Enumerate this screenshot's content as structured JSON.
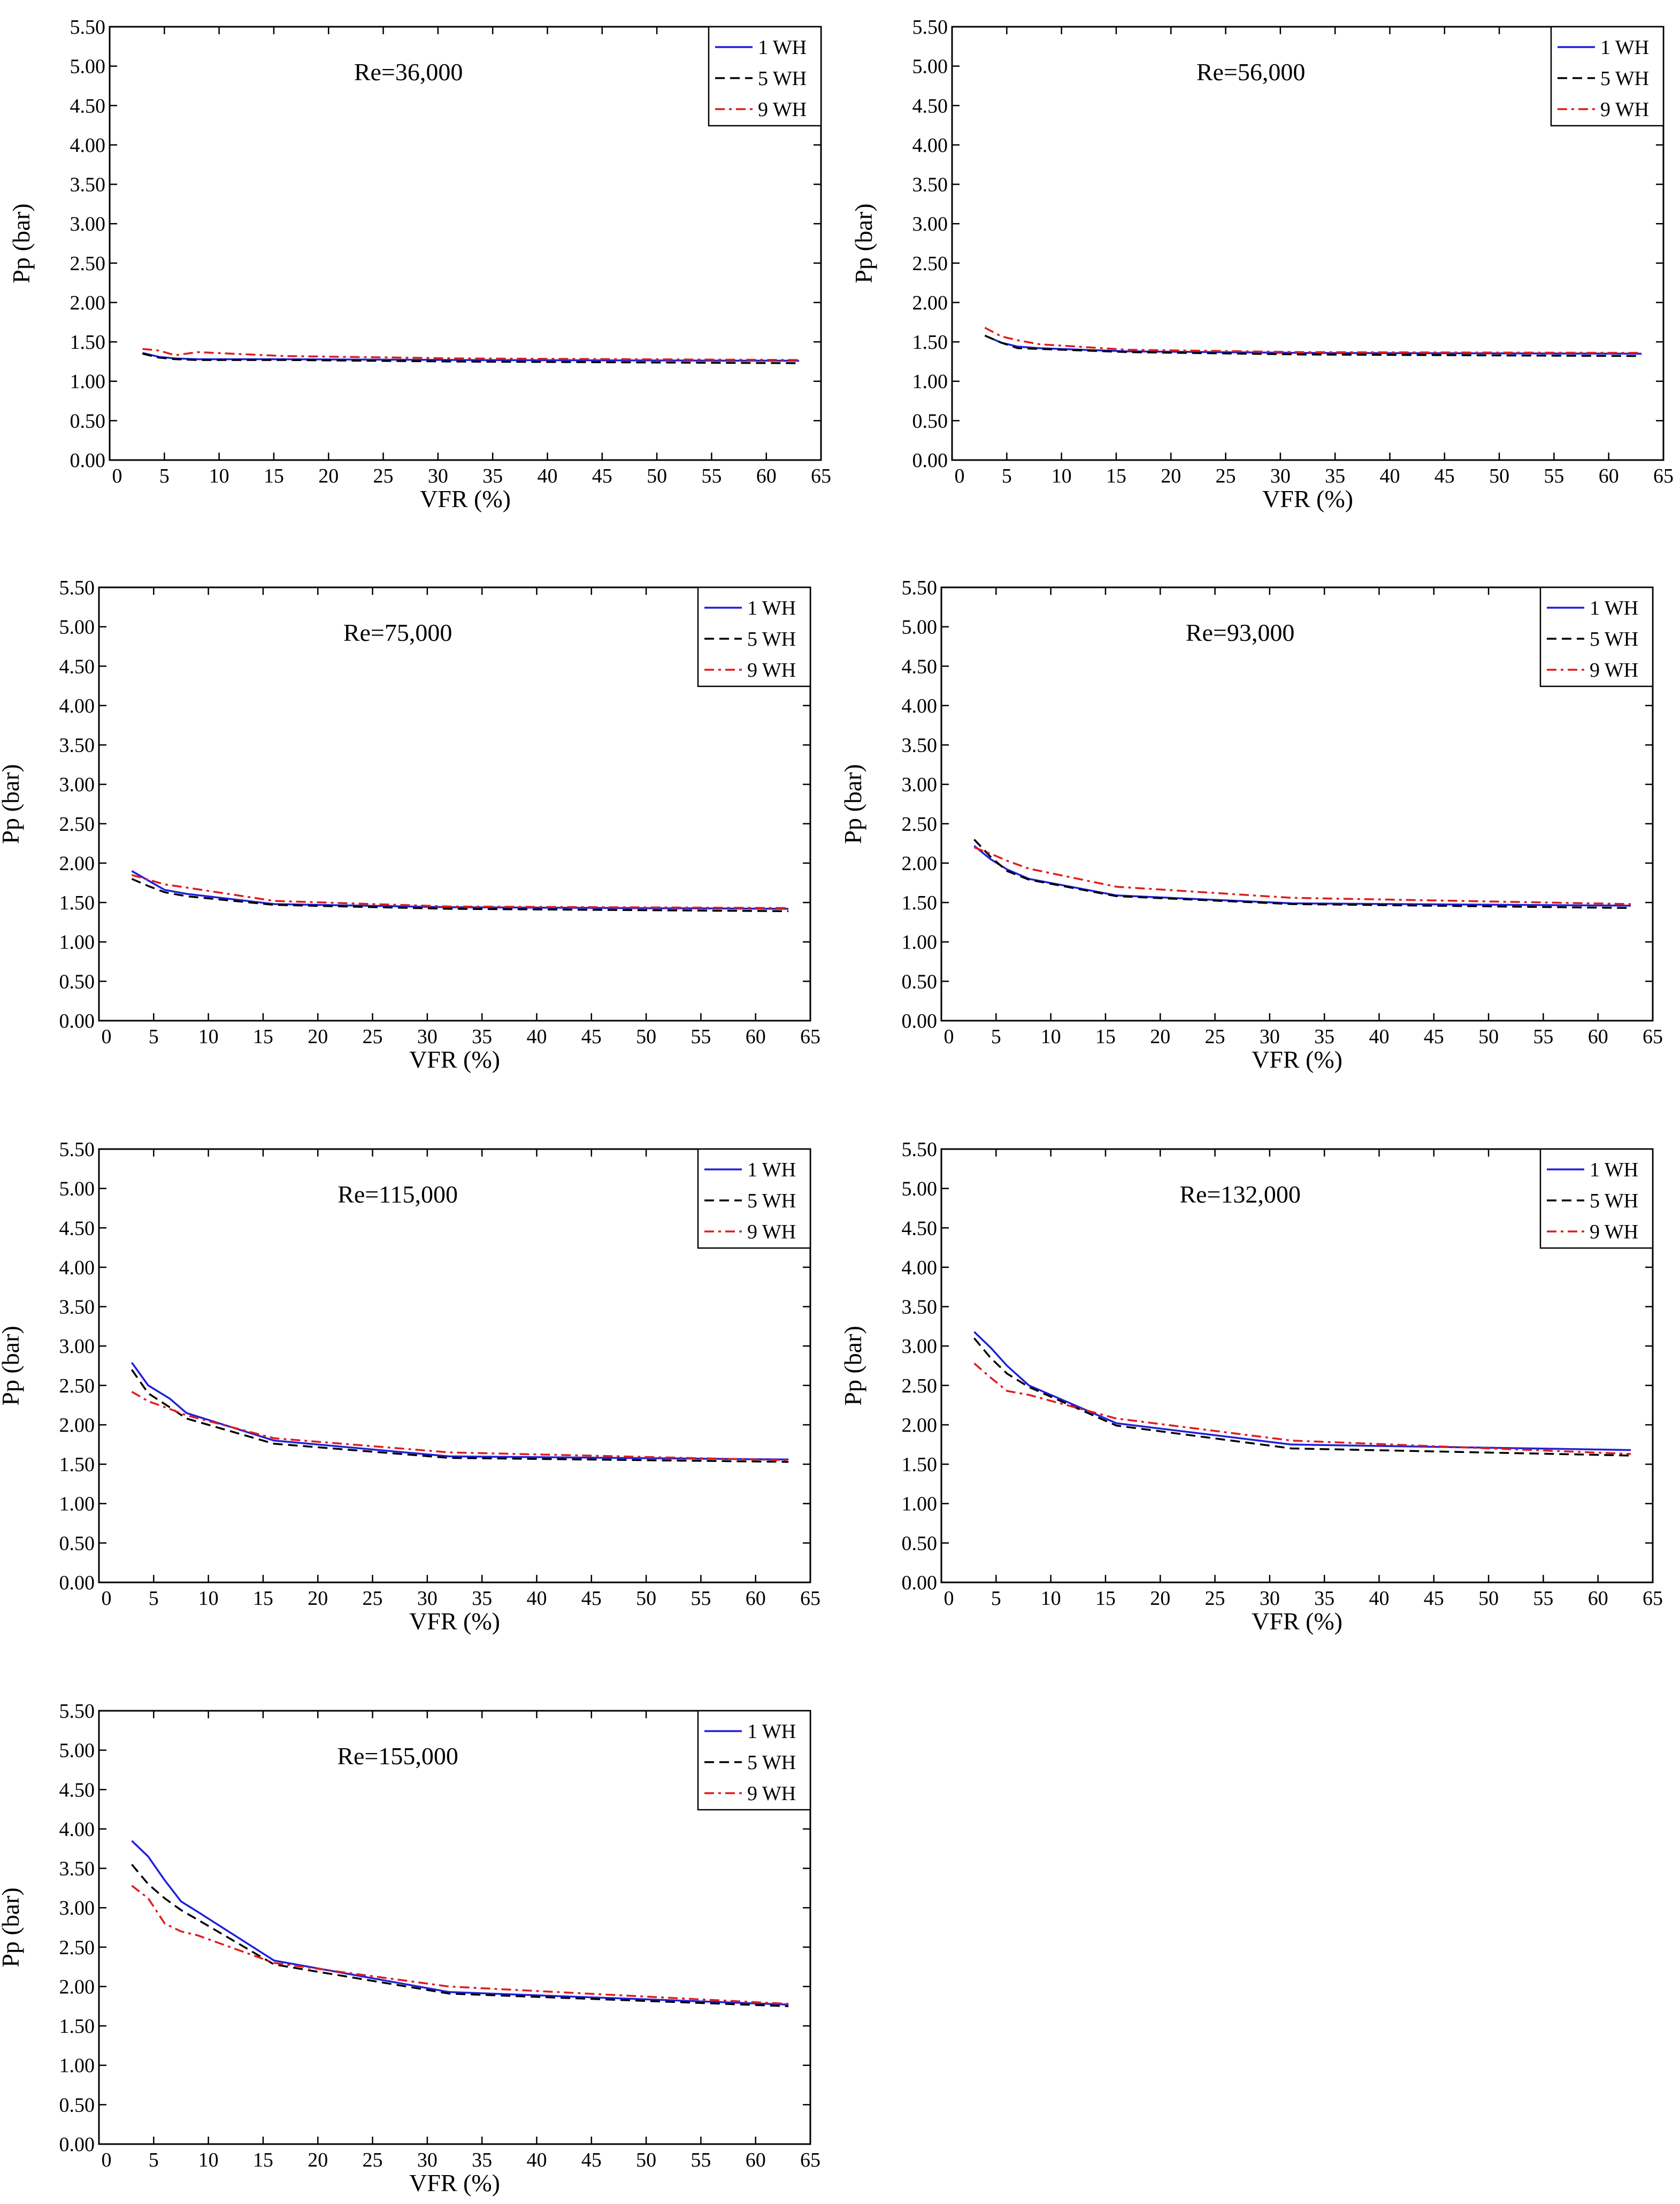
{
  "figure": {
    "colors": {
      "1 WH": "#1f1fdc",
      "5 WH": "#000000",
      "9 WH": "#e01b1b"
    }
  },
  "chart_data": [
    {
      "type": "line",
      "annotation": "Re=36,000",
      "xlabel": "VFR (%)",
      "ylabel": "Pp (bar)",
      "xlim": [
        0,
        65
      ],
      "ylim": [
        0,
        5.5
      ],
      "xticks": [
        0,
        5,
        10,
        15,
        20,
        25,
        30,
        35,
        40,
        45,
        50,
        55,
        60,
        65
      ],
      "yticks": [
        0,
        0.5,
        1,
        1.5,
        2,
        2.5,
        3,
        3.5,
        4,
        4.5,
        5,
        5.5
      ],
      "ytick_labels": [
        "0.00",
        "0.50",
        "1.00",
        "1.50",
        "2.00",
        "2.50",
        "3.00",
        "3.50",
        "4.00",
        "4.50",
        "5.00",
        "5.50"
      ],
      "grid": false,
      "legend": "top-right",
      "series": [
        {
          "name": "1 WH",
          "style": "solid",
          "x": [
            3,
            4.5,
            6,
            8,
            16,
            32,
            63
          ],
          "y": [
            1.36,
            1.31,
            1.29,
            1.28,
            1.28,
            1.27,
            1.26
          ]
        },
        {
          "name": "5 WH",
          "style": "dashed",
          "x": [
            3,
            4.5,
            6,
            8,
            16,
            32,
            63
          ],
          "y": [
            1.35,
            1.3,
            1.28,
            1.27,
            1.27,
            1.25,
            1.23
          ]
        },
        {
          "name": "9 WH",
          "style": "dashdot",
          "x": [
            3,
            4.5,
            6,
            8,
            16,
            32,
            63
          ],
          "y": [
            1.41,
            1.39,
            1.33,
            1.37,
            1.32,
            1.29,
            1.27
          ]
        }
      ]
    },
    {
      "type": "line",
      "annotation": "Re=56,000",
      "xlabel": "VFR (%)",
      "ylabel": "Pp (bar)",
      "xlim": [
        0,
        65
      ],
      "ylim": [
        0,
        5.5
      ],
      "xticks": [
        0,
        5,
        10,
        15,
        20,
        25,
        30,
        35,
        40,
        45,
        50,
        55,
        60,
        65
      ],
      "yticks": [
        0,
        0.5,
        1,
        1.5,
        2,
        2.5,
        3,
        3.5,
        4,
        4.5,
        5,
        5.5
      ],
      "ytick_labels": [
        "0.00",
        "0.50",
        "1.00",
        "1.50",
        "2.00",
        "2.50",
        "3.00",
        "3.50",
        "4.00",
        "4.50",
        "5.00",
        "5.50"
      ],
      "grid": false,
      "legend": "top-right",
      "series": [
        {
          "name": "1 WH",
          "style": "solid",
          "x": [
            3,
            4.5,
            6,
            8,
            16,
            32,
            63
          ],
          "y": [
            1.58,
            1.49,
            1.44,
            1.42,
            1.38,
            1.36,
            1.35
          ]
        },
        {
          "name": "5 WH",
          "style": "dashed",
          "x": [
            3,
            4.5,
            6,
            8,
            16,
            32,
            63
          ],
          "y": [
            1.58,
            1.49,
            1.42,
            1.41,
            1.37,
            1.34,
            1.32
          ]
        },
        {
          "name": "9 WH",
          "style": "dashdot",
          "x": [
            3,
            4.5,
            6,
            8,
            16,
            32,
            63
          ],
          "y": [
            1.68,
            1.57,
            1.52,
            1.47,
            1.4,
            1.37,
            1.36
          ]
        }
      ]
    },
    {
      "type": "line",
      "annotation": "Re=75,000",
      "xlabel": "VFR (%)",
      "ylabel": "Pp (bar)",
      "xlim": [
        0,
        65
      ],
      "ylim": [
        0,
        5.5
      ],
      "xticks": [
        0,
        5,
        10,
        15,
        20,
        25,
        30,
        35,
        40,
        45,
        50,
        55,
        60,
        65
      ],
      "yticks": [
        0,
        0.5,
        1,
        1.5,
        2,
        2.5,
        3,
        3.5,
        4,
        4.5,
        5,
        5.5
      ],
      "ytick_labels": [
        "0.00",
        "0.50",
        "1.00",
        "1.50",
        "2.00",
        "2.50",
        "3.00",
        "3.50",
        "4.00",
        "4.50",
        "5.00",
        "5.50"
      ],
      "grid": false,
      "legend": "top-right",
      "series": [
        {
          "name": "1 WH",
          "style": "solid",
          "x": [
            3,
            4.5,
            6,
            8,
            16,
            32,
            63
          ],
          "y": [
            1.9,
            1.78,
            1.66,
            1.61,
            1.48,
            1.44,
            1.42
          ]
        },
        {
          "name": "5 WH",
          "style": "dashed",
          "x": [
            3,
            4.5,
            6,
            8,
            16,
            32,
            63
          ],
          "y": [
            1.8,
            1.71,
            1.63,
            1.58,
            1.47,
            1.42,
            1.39
          ]
        },
        {
          "name": "9 WH",
          "style": "dashdot",
          "x": [
            3,
            4.5,
            6,
            8,
            16,
            32,
            63
          ],
          "y": [
            1.85,
            1.79,
            1.73,
            1.69,
            1.52,
            1.45,
            1.43
          ]
        }
      ]
    },
    {
      "type": "line",
      "annotation": "Re=93,000",
      "xlabel": "VFR (%)",
      "ylabel": "Pp (bar)",
      "xlim": [
        0,
        65
      ],
      "ylim": [
        0,
        5.5
      ],
      "xticks": [
        0,
        5,
        10,
        15,
        20,
        25,
        30,
        35,
        40,
        45,
        50,
        55,
        60,
        65
      ],
      "yticks": [
        0,
        0.5,
        1,
        1.5,
        2,
        2.5,
        3,
        3.5,
        4,
        4.5,
        5,
        5.5
      ],
      "ytick_labels": [
        "0.00",
        "0.50",
        "1.00",
        "1.50",
        "2.00",
        "2.50",
        "3.00",
        "3.50",
        "4.00",
        "4.50",
        "5.00",
        "5.50"
      ],
      "grid": false,
      "legend": "top-right",
      "series": [
        {
          "name": "1 WH",
          "style": "solid",
          "x": [
            3,
            4.5,
            6,
            8,
            16,
            32,
            63
          ],
          "y": [
            2.22,
            2.05,
            1.92,
            1.8,
            1.59,
            1.49,
            1.46
          ]
        },
        {
          "name": "5 WH",
          "style": "dashed",
          "x": [
            3,
            4.5,
            6,
            8,
            16,
            32,
            63
          ],
          "y": [
            2.3,
            2.08,
            1.9,
            1.79,
            1.58,
            1.48,
            1.43
          ]
        },
        {
          "name": "9 WH",
          "style": "dashdot",
          "x": [
            3,
            4.5,
            6,
            8,
            16,
            32,
            63
          ],
          "y": [
            2.2,
            2.12,
            2.03,
            1.93,
            1.7,
            1.56,
            1.48
          ]
        }
      ]
    },
    {
      "type": "line",
      "annotation": "Re=115,000",
      "xlabel": "VFR (%)",
      "ylabel": "Pp (bar)",
      "xlim": [
        0,
        65
      ],
      "ylim": [
        0,
        5.5
      ],
      "xticks": [
        0,
        5,
        10,
        15,
        20,
        25,
        30,
        35,
        40,
        45,
        50,
        55,
        60,
        65
      ],
      "yticks": [
        0,
        0.5,
        1,
        1.5,
        2,
        2.5,
        3,
        3.5,
        4,
        4.5,
        5,
        5.5
      ],
      "ytick_labels": [
        "0.00",
        "0.50",
        "1.00",
        "1.50",
        "2.00",
        "2.50",
        "3.00",
        "3.50",
        "4.00",
        "4.50",
        "5.00",
        "5.50"
      ],
      "grid": false,
      "legend": "top-right",
      "series": [
        {
          "name": "1 WH",
          "style": "solid",
          "x": [
            3,
            4.5,
            6.5,
            8,
            16,
            32,
            63
          ],
          "y": [
            2.79,
            2.5,
            2.33,
            2.15,
            1.8,
            1.6,
            1.56
          ]
        },
        {
          "name": "5 WH",
          "style": "dashed",
          "x": [
            3,
            4.5,
            6.5,
            8,
            16,
            32,
            63
          ],
          "y": [
            2.7,
            2.4,
            2.22,
            2.08,
            1.76,
            1.58,
            1.53
          ]
        },
        {
          "name": "9 WH",
          "style": "dashdot",
          "x": [
            3,
            4.5,
            6.5,
            8,
            16,
            32,
            63
          ],
          "y": [
            2.42,
            2.3,
            2.2,
            2.12,
            1.83,
            1.65,
            1.55
          ]
        }
      ]
    },
    {
      "type": "line",
      "annotation": "Re=132,000",
      "xlabel": "VFR (%)",
      "ylabel": "Pp (bar)",
      "xlim": [
        0,
        65
      ],
      "ylim": [
        0,
        5.5
      ],
      "xticks": [
        0,
        5,
        10,
        15,
        20,
        25,
        30,
        35,
        40,
        45,
        50,
        55,
        60,
        65
      ],
      "yticks": [
        0,
        0.5,
        1,
        1.5,
        2,
        2.5,
        3,
        3.5,
        4,
        4.5,
        5,
        5.5
      ],
      "ytick_labels": [
        "0.00",
        "0.50",
        "1.00",
        "1.50",
        "2.00",
        "2.50",
        "3.00",
        "3.50",
        "4.00",
        "4.50",
        "5.00",
        "5.50"
      ],
      "grid": false,
      "legend": "top-right",
      "series": [
        {
          "name": "1 WH",
          "style": "solid",
          "x": [
            3,
            4.5,
            6,
            8,
            16,
            32,
            63
          ],
          "y": [
            3.18,
            2.98,
            2.75,
            2.5,
            2.02,
            1.75,
            1.68
          ]
        },
        {
          "name": "5 WH",
          "style": "dashed",
          "x": [
            3,
            4.5,
            6,
            8,
            16,
            32,
            63
          ],
          "y": [
            3.1,
            2.85,
            2.65,
            2.48,
            1.99,
            1.7,
            1.61
          ]
        },
        {
          "name": "9 WH",
          "style": "dashdot",
          "x": [
            3,
            4.5,
            6,
            8,
            16,
            32,
            63
          ],
          "y": [
            2.78,
            2.6,
            2.43,
            2.38,
            2.08,
            1.8,
            1.63
          ]
        }
      ]
    },
    {
      "type": "line",
      "annotation": "Re=155,000",
      "xlabel": "VFR (%)",
      "ylabel": "Pp (bar)",
      "xlim": [
        0,
        65
      ],
      "ylim": [
        0,
        5.5
      ],
      "xticks": [
        0,
        5,
        10,
        15,
        20,
        25,
        30,
        35,
        40,
        45,
        50,
        55,
        60,
        65
      ],
      "yticks": [
        0,
        0.5,
        1,
        1.5,
        2,
        2.5,
        3,
        3.5,
        4,
        4.5,
        5,
        5.5
      ],
      "ytick_labels": [
        "0.00",
        "0.50",
        "1.00",
        "1.50",
        "2.00",
        "2.50",
        "3.00",
        "3.50",
        "4.00",
        "4.50",
        "5.00",
        "5.50"
      ],
      "grid": false,
      "legend": "top-right",
      "series": [
        {
          "name": "1 WH",
          "style": "solid",
          "x": [
            3,
            4.5,
            6,
            7.5,
            9,
            16,
            32,
            63
          ],
          "y": [
            3.85,
            3.65,
            3.35,
            3.08,
            2.95,
            2.33,
            1.93,
            1.77
          ]
        },
        {
          "name": "5 WH",
          "style": "dashed",
          "x": [
            3,
            4.5,
            6,
            7.5,
            9,
            16,
            32,
            63
          ],
          "y": [
            3.55,
            3.3,
            3.12,
            2.97,
            2.85,
            2.28,
            1.91,
            1.75
          ]
        },
        {
          "name": "9 WH",
          "style": "dashdot",
          "x": [
            3,
            4.5,
            6,
            7.5,
            9,
            16,
            32,
            63
          ],
          "y": [
            3.28,
            3.12,
            2.8,
            2.7,
            2.65,
            2.3,
            2.0,
            1.78
          ]
        }
      ]
    }
  ]
}
